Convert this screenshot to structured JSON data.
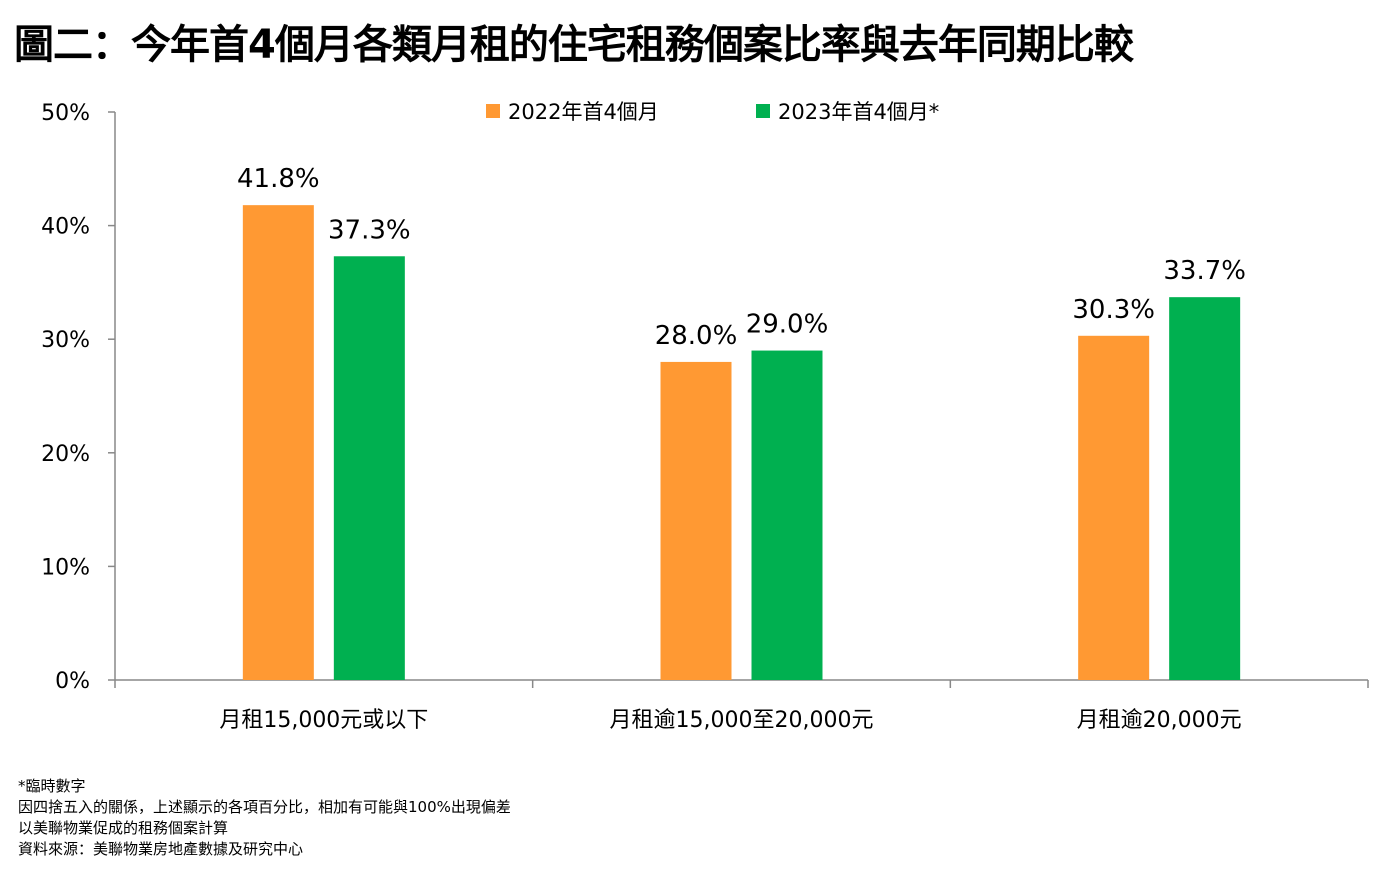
{
  "title": "圖二：今年首4個月各類月租的住宅租務個案比率與去年同期比較",
  "chart_data": {
    "type": "bar",
    "categories": [
      "月租15,000元或以下",
      "月租逾15,000至20,000元",
      "月租逾20,000元"
    ],
    "series": [
      {
        "name": "2022年首4個月",
        "color": "#FF9933",
        "values": [
          41.8,
          28.0,
          30.3
        ],
        "labels": [
          "41.8%",
          "28.0%",
          "30.3%"
        ]
      },
      {
        "name": "2023年首4個月*",
        "color": "#00B050",
        "values": [
          37.3,
          29.0,
          33.7
        ],
        "labels": [
          "37.3%",
          "29.0%",
          "33.7%"
        ]
      }
    ],
    "ylim": [
      0,
      50
    ],
    "yticks": [
      0,
      10,
      20,
      30,
      40,
      50
    ],
    "ytick_labels": [
      "0%",
      "10%",
      "20%",
      "30%",
      "40%",
      "50%"
    ],
    "grid": false,
    "legend_position": "top"
  },
  "notes": [
    "*臨時數字",
    "因四捨五入的關係，上述顯示的各項百分比，相加有可能與100%出現偏差",
    "以美聯物業促成的租務個案計算",
    "資料來源：美聯物業房地產數據及研究中心"
  ]
}
